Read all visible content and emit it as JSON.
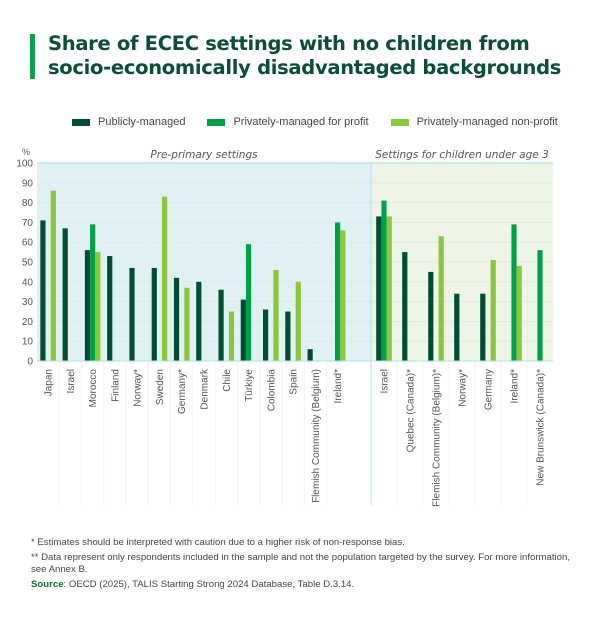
{
  "title": "Share of ECEC settings with no children from socio-economically disadvantaged backgrounds",
  "title_lines": [
    "Share of ECEC settings with no children from",
    "socio-economically disadvantaged backgrounds"
  ],
  "colors": {
    "title": "#0b4d35",
    "accent": "#0f9d4e",
    "panel_preprimary": "#e0f1f4",
    "panel_under3": "#eef4e6",
    "grid": "#d3e6e6",
    "axis_text": "#555555"
  },
  "notes": {
    "note1": "* Estimates should be interpreted with caution due to a higher risk of non-response bias.",
    "note2": "** Data represent only respondents included in the sample and not the population targeted by the survey. For more information, see Annex B.",
    "source_label": "Source",
    "source_text": ": OECD (2025), TALIS Starting Strong 2024 Database, Table D.3.14."
  },
  "chart_data": {
    "type": "bar",
    "title": "Share of ECEC settings with no children from socio-economically disadvantaged backgrounds",
    "ylabel": "%",
    "xlabel": "",
    "ylim": [
      0,
      100
    ],
    "yticks": [
      0,
      10,
      20,
      30,
      40,
      50,
      60,
      70,
      80,
      90,
      100
    ],
    "grid": true,
    "legend_position": "top",
    "series_meta": [
      {
        "name": "Publicly-managed",
        "color": "#004d33"
      },
      {
        "name": "Privately-managed for profit",
        "color": "#00a04a"
      },
      {
        "name": "Privately-managed non-profit",
        "color": "#8cc63f"
      }
    ],
    "panels": [
      {
        "title": "Pre-primary settings",
        "categories": [
          "Japan",
          "Israel",
          "Morocco",
          "Finland",
          "Norway*",
          "Sweden",
          "Germany*",
          "Denmark",
          "Chile",
          "Türkiye",
          "Colombia",
          "Spain",
          "Flemish Community (Belgium)",
          "Ireland*"
        ],
        "series": [
          {
            "name": "Publicly-managed",
            "values": [
              71,
              67,
              56,
              53,
              47,
              47,
              42,
              40,
              36,
              31,
              26,
              25,
              6,
              null
            ]
          },
          {
            "name": "Privately-managed for profit",
            "values": [
              null,
              null,
              69,
              null,
              null,
              null,
              null,
              null,
              null,
              59,
              null,
              null,
              null,
              70
            ]
          },
          {
            "name": "Privately-managed non-profit",
            "values": [
              86,
              null,
              55,
              null,
              null,
              83,
              37,
              null,
              25,
              null,
              46,
              40,
              null,
              66
            ]
          }
        ]
      },
      {
        "title": "Settings for children under age 3",
        "categories": [
          "Israel",
          "Quebec (Canada)*",
          "Flemish Community (Belgium)*",
          "Norway*",
          "Germany",
          "Ireland*",
          "New Brunswick (Canada)*"
        ],
        "series": [
          {
            "name": "Publicly-managed",
            "values": [
              73,
              55,
              45,
              34,
              34,
              null,
              null
            ]
          },
          {
            "name": "Privately-managed for profit",
            "values": [
              81,
              null,
              null,
              null,
              null,
              69,
              56
            ]
          },
          {
            "name": "Privately-managed non-profit",
            "values": [
              73,
              null,
              63,
              null,
              51,
              48,
              null
            ]
          }
        ]
      }
    ]
  }
}
